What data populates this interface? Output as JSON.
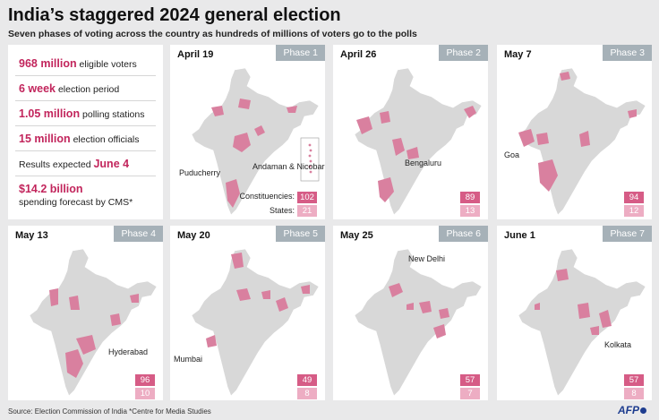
{
  "title": "India’s staggered 2024 general election",
  "subtitle": "Seven phases of voting across the country as hundreds of millions of voters go to the polls",
  "stats": [
    {
      "big": "968 million",
      "rest": "eligible voters"
    },
    {
      "big": "6 week",
      "rest": "election period"
    },
    {
      "big": "1.05 million",
      "rest": "polling stations"
    },
    {
      "big": "15 million",
      "rest": "election officials"
    },
    {
      "pre": "Results expected",
      "big": "June 4"
    },
    {
      "big": "$14.2 billion",
      "rest": "spending forecast by CMS*"
    }
  ],
  "legend": {
    "constituencies": "Constituencies:",
    "states": "States:"
  },
  "colors": {
    "highlight": "#d9809f",
    "map": "#d8d8d8",
    "accent": "#c2255c",
    "phase_tag": "#a6b1b8"
  },
  "phases": [
    {
      "phase": "Phase 1",
      "date": "April 19",
      "constituencies": "102",
      "states": "21",
      "labels": [
        "Puducherry",
        "Andaman & Nicobar Is."
      ]
    },
    {
      "phase": "Phase 2",
      "date": "April 26",
      "constituencies": "89",
      "states": "13",
      "labels": [
        "Bengaluru"
      ]
    },
    {
      "phase": "Phase 3",
      "date": "May 7",
      "constituencies": "94",
      "states": "12",
      "labels": [
        "Goa"
      ]
    },
    {
      "phase": "Phase 4",
      "date": "May 13",
      "constituencies": "96",
      "states": "10",
      "labels": [
        "Hyderabad"
      ]
    },
    {
      "phase": "Phase 5",
      "date": "May 20",
      "constituencies": "49",
      "states": "8",
      "labels": [
        "Mumbai"
      ]
    },
    {
      "phase": "Phase 6",
      "date": "May 25",
      "constituencies": "57",
      "states": "7",
      "labels": [
        "New Delhi"
      ]
    },
    {
      "phase": "Phase 7",
      "date": "June 1",
      "constituencies": "57",
      "states": "8",
      "labels": [
        "Kolkata"
      ]
    }
  ],
  "source": "Source: Election Commission of India  *Centre for Media Studies",
  "logo": "AFP"
}
